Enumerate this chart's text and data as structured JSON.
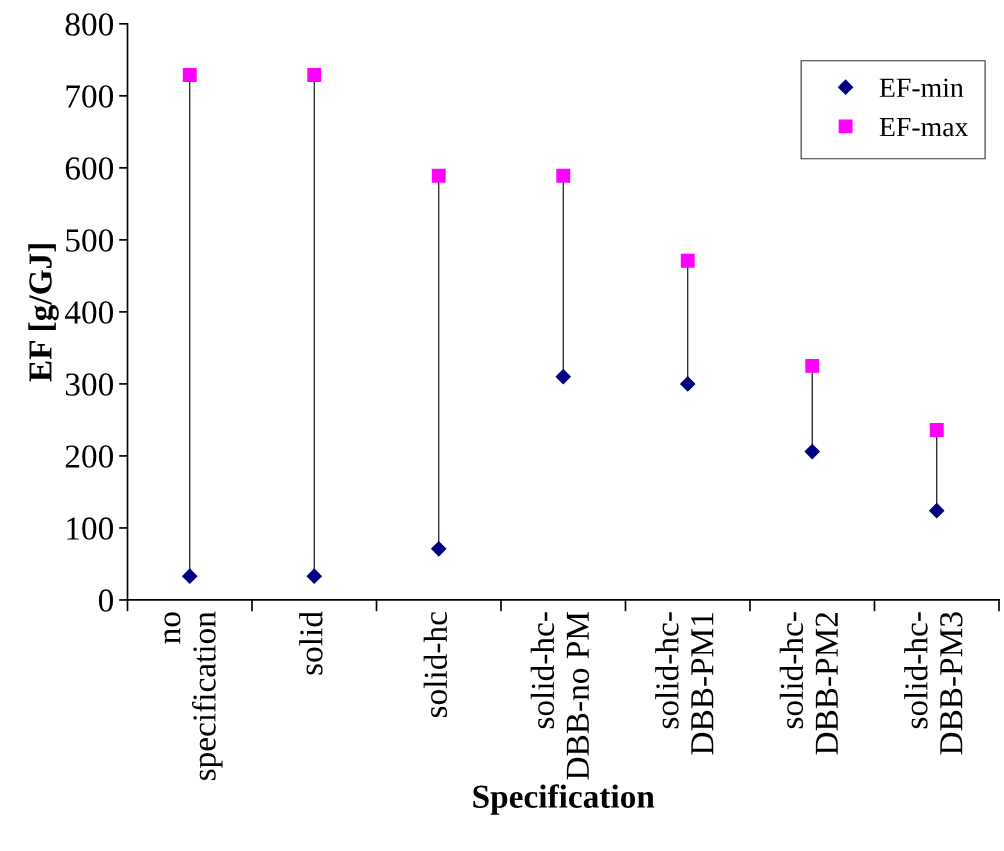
{
  "chart_data": {
    "type": "scatter",
    "xlabel": "Specification",
    "ylabel": "EF [g/GJ]",
    "categories": [
      "no\nspecification",
      "solid",
      "solid-hc",
      "solid-hc-\nDBB-no PM",
      "solid-hc-\nDBB-PM1",
      "solid-hc-\nDBB-PM2",
      "solid-hc-\nDBB-PM3"
    ],
    "series": [
      {
        "name": "EF-min",
        "color": "#000080",
        "marker": "diamond",
        "values": [
          33,
          33,
          71,
          310,
          300,
          206,
          124
        ]
      },
      {
        "name": "EF-max",
        "color": "#ff00ff",
        "marker": "square",
        "values": [
          729,
          729,
          589,
          589,
          471,
          325,
          236
        ]
      }
    ],
    "ylim": [
      0,
      800
    ],
    "yticks": [
      0,
      100,
      200,
      300,
      400,
      500,
      600,
      700,
      800
    ],
    "legend": "top right"
  }
}
